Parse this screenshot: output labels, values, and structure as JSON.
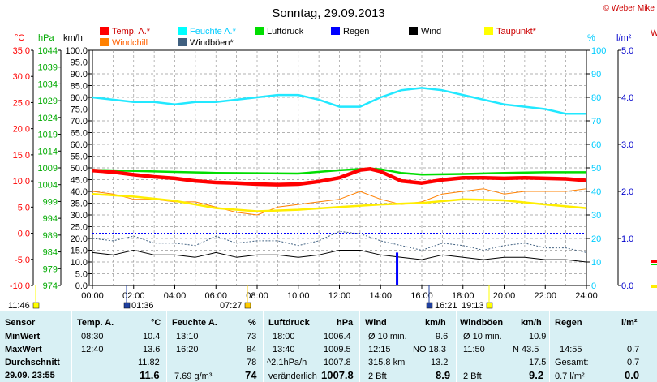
{
  "page": {
    "title": "Sonntag, 29.09.2013",
    "copyright": "© Weber Mike",
    "cutoff_glyph": "W"
  },
  "chart_data": {
    "type": "line",
    "title": "Sonntag, 29.09.2013",
    "xlabel": "",
    "x_ticks": [
      "00:00",
      "02:00",
      "04:00",
      "06:00",
      "08:00",
      "10:00",
      "12:00",
      "14:00",
      "16:00",
      "18:00",
      "20:00",
      "22:00",
      "24:00"
    ],
    "axes": {
      "temp": {
        "unit": "°C",
        "range": [
          -10,
          35
        ],
        "ticks": [
          "35.0",
          "30.0",
          "25.0",
          "20.0",
          "15.0",
          "10.0",
          "5.0",
          "0.0",
          "-5.0",
          "-10.0"
        ],
        "color": "#ff0000"
      },
      "press": {
        "unit": "hPa",
        "range": [
          974,
          1044
        ],
        "ticks": [
          "1044",
          "1039",
          "1034",
          "1029",
          "1024",
          "1019",
          "1014",
          "1009",
          "1004",
          "999",
          "994",
          "989",
          "984",
          "979",
          "974"
        ],
        "color": "#00aa00"
      },
      "wind": {
        "unit": "km/h",
        "range": [
          0,
          100
        ],
        "ticks": [
          "100.0",
          "95.0",
          "90.0",
          "85.0",
          "80.0",
          "75.0",
          "70.0",
          "65.0",
          "60.0",
          "55.0",
          "50.0",
          "45.0",
          "40.0",
          "35.0",
          "30.0",
          "25.0",
          "20.0",
          "15.0",
          "10.0",
          "5.0",
          "0.0"
        ],
        "color": "#000000"
      },
      "hum": {
        "unit": "%",
        "range": [
          0,
          100
        ],
        "ticks": [
          "100",
          "90",
          "80",
          "70",
          "60",
          "50",
          "40",
          "30",
          "20",
          "10",
          "0"
        ],
        "color": "#00ccff"
      },
      "rain": {
        "unit": "l/m²",
        "range": [
          0,
          5
        ],
        "ticks": [
          "5.0",
          "4.0",
          "3.0",
          "2.0",
          "1.0",
          "0.0"
        ],
        "color": "#0000cc"
      }
    },
    "legend": [
      {
        "name": "Temp. A.*",
        "color": "#ff0000"
      },
      {
        "name": "Feuchte A.*",
        "color": "#00ffff"
      },
      {
        "name": "Luftdruck",
        "color": "#00dd00"
      },
      {
        "name": "Regen",
        "color": "#0000ff"
      },
      {
        "name": "Wind",
        "color": "#000000"
      },
      {
        "name": "Taupunkt*",
        "color": "#ffff00"
      },
      {
        "name": "Windchill",
        "color": "#ff8000"
      },
      {
        "name": "Windböen*",
        "color": "#406080"
      }
    ],
    "series": [
      {
        "name": "Temp. A.*",
        "axis": "temp",
        "x": [
          0,
          1,
          2,
          3,
          4,
          5,
          6,
          7,
          8,
          9,
          10,
          11,
          12,
          13,
          13.5,
          14,
          15,
          16,
          17,
          18,
          19,
          20,
          21,
          22,
          23,
          24
        ],
        "y": [
          12.0,
          11.7,
          11.2,
          10.8,
          10.5,
          10.0,
          9.7,
          9.6,
          9.4,
          9.3,
          9.4,
          9.9,
          10.6,
          12.1,
          12.3,
          11.8,
          10.0,
          9.6,
          10.2,
          10.6,
          10.6,
          10.5,
          10.6,
          10.5,
          10.4,
          10.1
        ]
      },
      {
        "name": "Feuchte A.*",
        "axis": "hum",
        "x": [
          0,
          1,
          2,
          3,
          4,
          5,
          6,
          7,
          8,
          9,
          10,
          11,
          12,
          13,
          14,
          15,
          16,
          17,
          18,
          19,
          20,
          21,
          22,
          23,
          24
        ],
        "y": [
          80,
          79,
          78,
          78,
          77,
          78,
          78,
          79,
          80,
          81,
          81,
          79,
          76,
          76,
          80,
          83,
          84,
          83,
          81,
          79,
          77,
          76,
          75,
          73,
          73
        ]
      },
      {
        "name": "Luftdruck",
        "axis": "press",
        "x": [
          0,
          2,
          4,
          6,
          8,
          10,
          12,
          13.5,
          14,
          15,
          16,
          18,
          20,
          22,
          24
        ],
        "y": [
          1008.4,
          1008.1,
          1007.8,
          1007.5,
          1007.4,
          1007.3,
          1008.3,
          1008.8,
          1008.6,
          1007.5,
          1007.0,
          1007.2,
          1007.5,
          1007.7,
          1007.7
        ]
      },
      {
        "name": "Taupunkt*",
        "axis": "temp",
        "x": [
          0,
          2,
          4,
          6,
          8,
          10,
          12,
          14,
          16,
          18,
          20,
          22,
          24
        ],
        "y": [
          7.5,
          7.0,
          6.2,
          4.8,
          4.2,
          4.5,
          5.0,
          5.5,
          5.8,
          6.5,
          6.3,
          5.5,
          4.8
        ]
      },
      {
        "name": "Windchill",
        "axis": "temp",
        "x": [
          0,
          1,
          2,
          3,
          4,
          5,
          6,
          7,
          8,
          9,
          10,
          11,
          12,
          13,
          14,
          15,
          16,
          17,
          18,
          19,
          20,
          21,
          22,
          23,
          24
        ],
        "y": [
          8.0,
          7.5,
          6.5,
          6.5,
          6.0,
          6.0,
          5.0,
          4.0,
          3.5,
          5.0,
          5.5,
          6.0,
          6.5,
          8.0,
          6.5,
          5.5,
          6.0,
          7.5,
          8.0,
          8.5,
          7.5,
          8.0,
          8.0,
          8.0,
          8.5
        ]
      },
      {
        "name": "Wind",
        "axis": "wind",
        "x": [
          0,
          1,
          2,
          3,
          4,
          5,
          6,
          7,
          8,
          9,
          10,
          11,
          12,
          13,
          14,
          15,
          16,
          17,
          18,
          19,
          20,
          21,
          22,
          23,
          24
        ],
        "y": [
          14,
          13,
          15,
          13,
          13,
          12,
          14,
          12,
          13,
          13,
          12,
          13,
          15,
          15,
          13,
          12,
          11,
          13,
          12,
          11,
          12,
          12,
          11,
          11,
          10
        ]
      },
      {
        "name": "Windböen*",
        "axis": "wind",
        "x": [
          0,
          1,
          2,
          3,
          4,
          5,
          6,
          7,
          8,
          9,
          10,
          11,
          12,
          13,
          14,
          15,
          16,
          17,
          18,
          19,
          20,
          21,
          22,
          23,
          24
        ],
        "y": [
          20,
          19,
          21,
          18,
          18,
          17,
          21,
          18,
          19,
          19,
          17,
          19,
          23,
          22,
          19,
          17,
          15,
          18,
          17,
          15,
          17,
          18,
          16,
          16,
          14
        ]
      },
      {
        "name": "Regen",
        "axis": "rain",
        "type": "bar",
        "x": [
          14.8
        ],
        "y": [
          0.7
        ]
      }
    ],
    "reference_line": {
      "axis": "temp",
      "value": 0.0,
      "color": "#0000ff"
    },
    "grid": true,
    "time_markers": [
      {
        "label": "01:36",
        "color": "#2040a0"
      },
      {
        "label": "07:27",
        "color": "#ffcc00"
      },
      {
        "label": "11:46",
        "color": "#ffff00"
      },
      {
        "label": "16:21",
        "color": "#2040a0"
      },
      {
        "label": "19:13",
        "color": "#ffff00"
      }
    ]
  },
  "table": {
    "col1": {
      "header": "Sensor",
      "minwert": "MinWert",
      "maxwert": "MaxWert",
      "durchschnitt": "Durchschnitt",
      "current": "29.09.  23:55"
    },
    "temp": {
      "header": "Temp. A.",
      "unit": "°C",
      "min_time": "08:30",
      "min_val": "10.4",
      "max_time": "12:40",
      "max_val": "13.6",
      "avg": "11.82",
      "current": "11.6"
    },
    "feuchte": {
      "header": "Feuchte A.",
      "unit": "%",
      "min_time": "13:10",
      "min_val": "73",
      "max_time": "16:20",
      "max_val": "84",
      "avg": "78",
      "current_abs": "7.69 g/m³",
      "current": "74"
    },
    "druck": {
      "header": "Luftdruck",
      "unit": "hPa",
      "min_time": "18:00",
      "min_val": "1006.4",
      "max_time": "13:40",
      "max_val": "1009.5",
      "trend": "^2.1hPa/h",
      "avg": "1007.8",
      "state": "veränderlich",
      "current": "1007.8"
    },
    "wind": {
      "header": "Wind",
      "unit": "km/h",
      "row1_label": "Ø 10 min.",
      "row1_val": "9.6",
      "row2_time": "12:15",
      "row2_dir": "NO 18.3",
      "row3_km": "315.8 km",
      "row3_val": "13.2",
      "bft": "2 Bft",
      "current": "8.9"
    },
    "boeen": {
      "header": "Windböen",
      "unit": "km/h",
      "row1_label": "Ø 10 min.",
      "row1_val": "10.9",
      "row2_time": "11:50",
      "row2_dir": "N 43.5",
      "avg": "17.5",
      "bft": "2 Bft",
      "current": "9.2"
    },
    "regen": {
      "header": "Regen",
      "unit": "l/m²",
      "row2_time": "14:55",
      "row2_val": "0.7",
      "gesamt_label": "Gesamt:",
      "gesamt_val": "0.7",
      "current_label": "0.7 l/m²",
      "current": "0.0"
    }
  }
}
